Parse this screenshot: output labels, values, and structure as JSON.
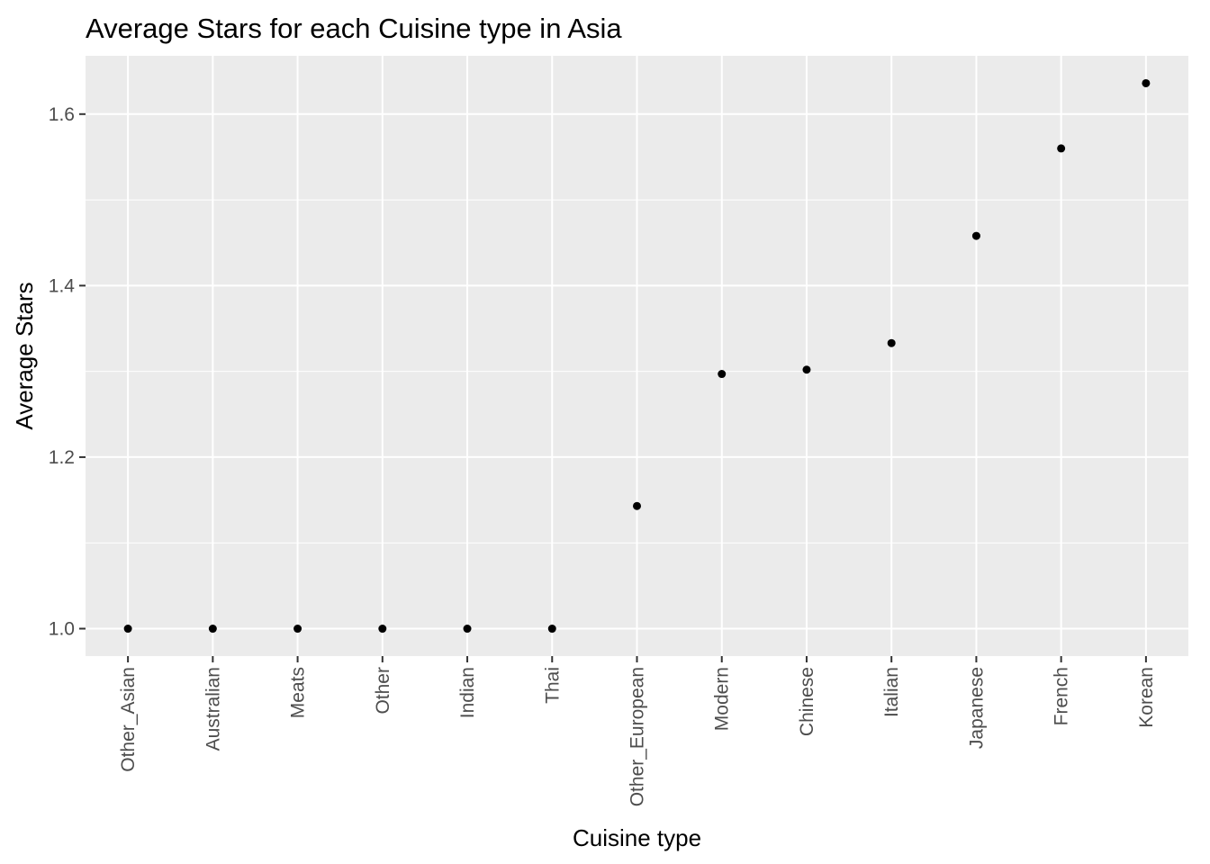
{
  "chart_data": {
    "type": "scatter",
    "title": "Average Stars for each Cuisine type in Asia",
    "xlabel": "Cuisine type",
    "ylabel": "Average Stars",
    "categories": [
      "Other_Asian",
      "Australian",
      "Meats",
      "Other",
      "Indian",
      "Thai",
      "Other_European",
      "Modern",
      "Chinese",
      "Italian",
      "Japanese",
      "French",
      "Korean"
    ],
    "values": [
      1.0,
      1.0,
      1.0,
      1.0,
      1.0,
      1.0,
      1.143,
      1.297,
      1.302,
      1.333,
      1.458,
      1.56,
      1.636
    ],
    "ylim": [
      0.968,
      1.668
    ],
    "yticks": [
      1.0,
      1.2,
      1.4,
      1.6
    ],
    "ytick_labels": [
      "1.0",
      "1.2",
      "1.4",
      "1.6"
    ],
    "grid": true,
    "legend": "none"
  },
  "colors": {
    "panel_background": "#ebebeb",
    "grid_major": "#ffffff",
    "point": "#000000",
    "tick_text": "#4d4d4d",
    "tick_mark": "#333333"
  }
}
